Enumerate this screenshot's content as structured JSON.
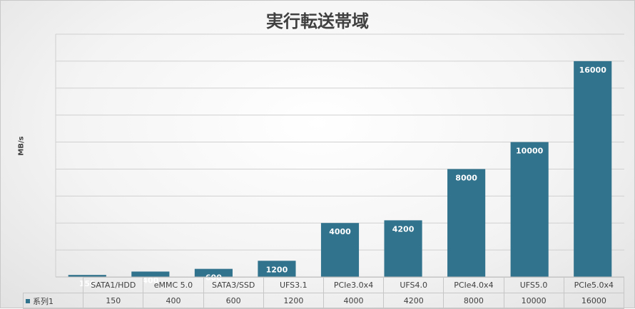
{
  "chart_data": {
    "type": "bar",
    "title": "実行転送帯域",
    "ylabel": "MB/s",
    "xlabel": "",
    "ylim": [
      0,
      18000
    ],
    "grid": true,
    "bar_color": "#31728C",
    "categories": [
      "SATA1/HDD",
      "eMMC 5.0",
      "SATA3/SSD",
      "UFS3.1",
      "PCIe3.0x4",
      "UFS4.0",
      "PCIe4.0x4",
      "UFS5.0",
      "PCIe5.0x4"
    ],
    "series": [
      {
        "name": "系列1",
        "values": [
          150,
          400,
          600,
          1200,
          4000,
          4200,
          8000,
          10000,
          16000
        ]
      }
    ]
  }
}
